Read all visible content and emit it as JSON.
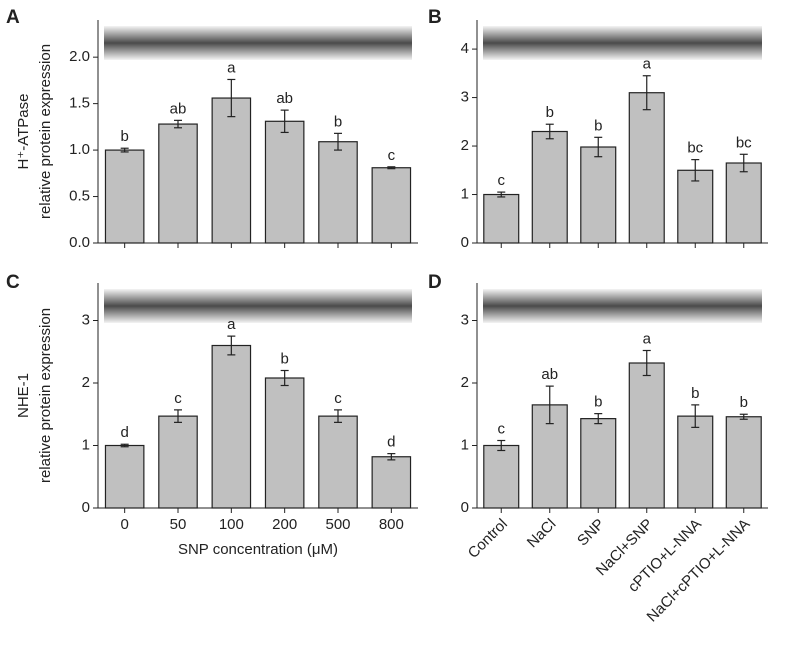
{
  "chart_data": [
    {
      "type": "bar",
      "panel": "A",
      "ylabel": [
        "H⁺-ATPase",
        "relative protein expression"
      ],
      "values": [
        1.0,
        1.28,
        1.56,
        1.31,
        1.09,
        0.81
      ],
      "errors": [
        0.02,
        0.04,
        0.2,
        0.12,
        0.09,
        0.01
      ],
      "annotations": [
        "b",
        "ab",
        "a",
        "ab",
        "b",
        "c"
      ],
      "color": "#c0c0c0",
      "ylim": [
        0,
        2.4
      ],
      "yticks": [
        {
          "value": 0,
          "label": "0.0"
        },
        {
          "value": 0.5,
          "label": "0.5"
        },
        {
          "value": 1,
          "label": "1.0"
        },
        {
          "value": 1.5,
          "label": "1.5"
        },
        {
          "value": 2,
          "label": "2.0"
        }
      ]
    },
    {
      "type": "bar",
      "panel": "B",
      "values": [
        1.0,
        2.3,
        1.98,
        3.1,
        1.5,
        1.65
      ],
      "errors": [
        0.05,
        0.15,
        0.2,
        0.35,
        0.22,
        0.18
      ],
      "annotations": [
        "c",
        "b",
        "b",
        "a",
        "bc",
        "bc"
      ],
      "color": "#c0c0c0",
      "ylim": [
        0,
        4.6
      ],
      "yticks": [
        0,
        1,
        2,
        3,
        4
      ]
    },
    {
      "type": "bar",
      "panel": "C",
      "ylabel": [
        "NHE-1",
        "relative protein expression"
      ],
      "xlabel": "SNP concentration (μM)",
      "categories": [
        "0",
        "50",
        "100",
        "200",
        "500",
        "800"
      ],
      "values": [
        1.0,
        1.47,
        2.6,
        2.08,
        1.47,
        0.82
      ],
      "errors": [
        0.02,
        0.1,
        0.15,
        0.12,
        0.1,
        0.05
      ],
      "annotations": [
        "d",
        "c",
        "a",
        "b",
        "c",
        "d"
      ],
      "color": "#c0c0c0",
      "ylim": [
        0,
        3.6
      ],
      "yticks": [
        0,
        1,
        2,
        3
      ]
    },
    {
      "type": "bar",
      "panel": "D",
      "categories": [
        "Control",
        "NaCl",
        "SNP",
        "NaCl+SNP",
        "cPTIO+L-NNA",
        "NaCl+cPTIO+L-NNA"
      ],
      "values": [
        1.0,
        1.65,
        1.43,
        2.32,
        1.47,
        1.46
      ],
      "errors": [
        0.08,
        0.3,
        0.08,
        0.2,
        0.18,
        0.04
      ],
      "annotations": [
        "c",
        "ab",
        "b",
        "a",
        "b",
        "b"
      ],
      "color": "#c0c0c0",
      "ylim": [
        0,
        3.6
      ],
      "yticks": [
        0,
        1,
        2,
        3
      ]
    }
  ]
}
